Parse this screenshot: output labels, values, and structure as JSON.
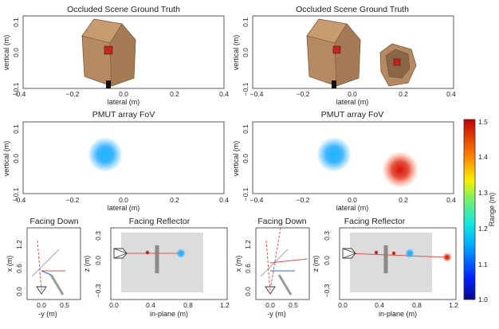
{
  "colors": {
    "box_brown": "#b58a62",
    "box_dark": "#7a5a3a",
    "red_cube": "#c0281e",
    "blob_cyan": "#1aa8ff",
    "blob_red": "#e0240a",
    "line_red": "#d9534f",
    "grey_reflector": "#8a8a8a",
    "axis_blue": "#2a6edb",
    "shade": "#dcdcdc"
  },
  "panels": {
    "gt_left": {
      "title": "Occluded Scene Ground Truth",
      "xlabel": "lateral (m)",
      "ylabel": "vertical (m)"
    },
    "gt_right": {
      "title": "Occluded Scene Ground Truth",
      "xlabel": "lateral (m)",
      "ylabel": "vertical (m)"
    },
    "fov_left": {
      "title": "PMUT array FoV",
      "xlabel": "lateral (m)",
      "ylabel": "vertical (m)"
    },
    "fov_right": {
      "title": "PMUT array FoV",
      "xlabel": "lateral (m)",
      "ylabel": "vertical (m)"
    },
    "down_left": {
      "title": "Facing Down",
      "xlabel": "-y (m)",
      "ylabel": "x (m)"
    },
    "refl_left": {
      "title": "Facing Reflector",
      "xlabel": "in-plane (m)",
      "ylabel": "z (m)"
    },
    "down_right": {
      "title": "Facing Down",
      "xlabel": "-y (m)",
      "ylabel": "x (m)"
    },
    "refl_right": {
      "title": "Facing Reflector",
      "xlabel": "in-plane (m)",
      "ylabel": "z (m)"
    }
  },
  "colorbar": {
    "label": "Range (m)",
    "ticks": [
      "1.5",
      "1.4",
      "1.3",
      "1.2",
      "1.1",
      "1.0"
    ],
    "range": [
      1.0,
      1.5
    ]
  },
  "chart_data": [
    {
      "type": "scatter",
      "title": "Occluded Scene Ground Truth",
      "xlabel": "lateral (m)",
      "ylabel": "vertical (m)",
      "xlim": [
        -0.4,
        0.4
      ],
      "ylim": [
        -0.1,
        0.1
      ],
      "xticks": [
        "−0.4",
        "−0.2",
        "0.0",
        "0.2",
        "0.4"
      ],
      "yticks": [
        "0.1",
        "0.0",
        "−0.1"
      ],
      "objects": [
        {
          "kind": "box",
          "x": -0.07,
          "y": 0.07
        }
      ]
    },
    {
      "type": "scatter",
      "title": "Occluded Scene Ground Truth",
      "xlabel": "lateral (m)",
      "ylabel": "vertical (m)",
      "xlim": [
        -0.4,
        0.4
      ],
      "ylim": [
        -0.1,
        0.1
      ],
      "xticks": [
        "−0.4",
        "−0.2",
        "0.0",
        "0.2",
        "0.4"
      ],
      "yticks": [
        "0.1",
        "0.0",
        "−0.1"
      ],
      "objects": [
        {
          "kind": "box",
          "x": -0.07,
          "y": 0.07
        },
        {
          "kind": "box",
          "x": 0.18,
          "y": 0.0
        }
      ]
    },
    {
      "type": "heatmap",
      "title": "PMUT array FoV",
      "xlabel": "lateral (m)",
      "ylabel": "vertical (m)",
      "xlim": [
        -0.4,
        0.4
      ],
      "ylim": [
        -0.1,
        0.1
      ],
      "xticks": [
        "−0.4",
        "−0.2",
        "0.0",
        "0.2",
        "0.4"
      ],
      "yticks": [
        "0.1",
        "0.0",
        "−0.1"
      ],
      "detections": [
        {
          "x": -0.08,
          "y": 0.02,
          "range": 1.2
        }
      ]
    },
    {
      "type": "heatmap",
      "title": "PMUT array FoV",
      "xlabel": "lateral (m)",
      "ylabel": "vertical (m)",
      "xlim": [
        -0.4,
        0.4
      ],
      "ylim": [
        -0.1,
        0.1
      ],
      "xticks": [
        "−0.4",
        "−0.2",
        "0.0",
        "0.2",
        "0.4"
      ],
      "yticks": [
        "0.1",
        "0.0",
        "−0.1"
      ],
      "detections": [
        {
          "x": -0.08,
          "y": 0.02,
          "range": 1.2
        },
        {
          "x": 0.18,
          "y": -0.005,
          "range": 1.45
        }
      ]
    },
    {
      "type": "line",
      "title": "Facing Down",
      "xlabel": "-y (m)",
      "ylabel": "x (m)",
      "xlim": [
        -0.25,
        0.75
      ],
      "ylim": [
        -0.25,
        1.45
      ],
      "xticks": [
        "0.0",
        "0.5"
      ],
      "yticks": [
        "1.2",
        "0.6",
        "0.0"
      ],
      "array_pos": [
        0.0,
        0.0
      ],
      "ray_end": [
        -0.02,
        1.2
      ],
      "beam_end": [
        0.5,
        0.5
      ]
    },
    {
      "type": "line",
      "title": "Facing Reflector",
      "xlabel": "in-plane (m)",
      "ylabel": "z (m)",
      "xlim": [
        -0.02,
        1.25
      ],
      "ylim": [
        -0.32,
        0.36
      ],
      "xticks": [
        "0.0",
        "0.4",
        "0.8",
        "1.2"
      ],
      "yticks": [
        "0.3",
        "0.0",
        "−0.3"
      ],
      "shaded_region": {
        "x": [
          0.1,
          1.0
        ],
        "z": [
          -0.25,
          0.3
        ]
      },
      "targets": [
        {
          "x": 0.4,
          "z": 0.02
        },
        {
          "x": 0.75,
          "z": 0.0,
          "range": 1.2
        }
      ]
    },
    {
      "type": "line",
      "title": "Facing Down",
      "xlabel": "-y (m)",
      "ylabel": "x (m)",
      "xlim": [
        -0.25,
        0.75
      ],
      "ylim": [
        -0.25,
        1.45
      ],
      "xticks": [
        "0.0",
        "0.5"
      ],
      "yticks": [
        "1.2",
        "0.6",
        "0.0"
      ],
      "array_pos": [
        0.0,
        0.0
      ],
      "ray_end": [
        0.3,
        1.3
      ],
      "beam_end": [
        0.7,
        0.9
      ]
    },
    {
      "type": "line",
      "title": "Facing Reflector",
      "xlabel": "in-plane (m)",
      "ylabel": "z (m)",
      "xlim": [
        -0.02,
        1.25
      ],
      "ylim": [
        -0.32,
        0.36
      ],
      "xticks": [
        "0.0",
        "0.4",
        "0.8",
        "1.2"
      ],
      "yticks": [
        "0.3",
        "0.0",
        "−0.3"
      ],
      "shaded_region": {
        "x": [
          0.1,
          1.0
        ],
        "z": [
          -0.25,
          0.3
        ]
      },
      "targets": [
        {
          "x": 0.4,
          "z": 0.02
        },
        {
          "x": 0.58,
          "z": 0.02
        },
        {
          "x": 0.75,
          "z": 0.0,
          "range": 1.2
        },
        {
          "x": 1.15,
          "z": -0.02,
          "range": 1.45
        }
      ]
    }
  ]
}
